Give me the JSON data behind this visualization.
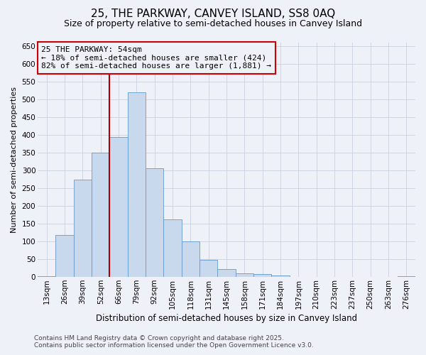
{
  "title": "25, THE PARKWAY, CANVEY ISLAND, SS8 0AQ",
  "subtitle": "Size of property relative to semi-detached houses in Canvey Island",
  "xlabel": "Distribution of semi-detached houses by size in Canvey Island",
  "ylabel": "Number of semi-detached properties",
  "footer_line1": "Contains HM Land Registry data © Crown copyright and database right 2025.",
  "footer_line2": "Contains public sector information licensed under the Open Government Licence v3.0.",
  "bar_color": "#c8d8ed",
  "bar_edge_color": "#6699cc",
  "vline_color": "#aa0000",
  "annotation_line1": "25 THE PARKWAY: 54sqm",
  "annotation_line2": "← 18% of semi-detached houses are smaller (424)",
  "annotation_line3": "82% of semi-detached houses are larger (1,881) →",
  "categories": [
    "13sqm",
    "26sqm",
    "39sqm",
    "52sqm",
    "66sqm",
    "79sqm",
    "92sqm",
    "105sqm",
    "118sqm",
    "131sqm",
    "145sqm",
    "158sqm",
    "171sqm",
    "184sqm",
    "197sqm",
    "210sqm",
    "223sqm",
    "237sqm",
    "250sqm",
    "263sqm",
    "276sqm"
  ],
  "values": [
    3,
    119,
    275,
    350,
    395,
    520,
    307,
    163,
    100,
    48,
    23,
    10,
    8,
    5,
    0,
    0,
    0,
    0,
    0,
    0,
    2
  ],
  "vline_x": 3.5,
  "ylim": [
    0,
    660
  ],
  "yticks": [
    0,
    50,
    100,
    150,
    200,
    250,
    300,
    350,
    400,
    450,
    500,
    550,
    600,
    650
  ],
  "grid_color": "#c8d0e0",
  "bg_color": "#eef1f8",
  "ann_box_edge": "#cc0000",
  "ann_fontsize": 8.0,
  "title_fontsize": 11,
  "subtitle_fontsize": 9,
  "axis_label_fontsize": 8,
  "tick_fontsize": 7.5,
  "footer_fontsize": 6.5
}
